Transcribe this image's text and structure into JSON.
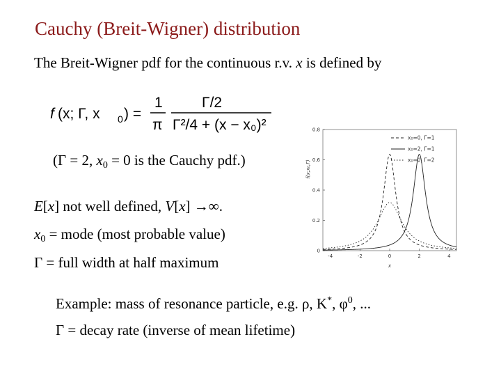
{
  "title": "Cauchy (Breit-Wigner) distribution",
  "intro": {
    "text": "The Breit-Wigner pdf for the continuous r.v. ",
    "var": "x",
    "text2": " is defined by"
  },
  "formula": {
    "lhs_f": "f",
    "lhs_args": "(x; Γ, x",
    "lhs_sub": "0",
    "lhs_close": ") =",
    "coef_num": "1",
    "coef_den": "π",
    "frac_num": "Γ/2",
    "frac_den": "Γ²/4 + (x − x₀)²"
  },
  "lines": {
    "cauchy_note": {
      "a": "(Γ = 2, ",
      "b": "x",
      "c": "0",
      "d": " = 0 is the Cauchy pdf.)"
    },
    "moments": {
      "a": "E",
      "b": "[",
      "c": "x",
      "d": "] not well defined,  ",
      "e": "V",
      "f": "[",
      "g": "x",
      "h": "] →∞."
    },
    "mode": {
      "a": "x",
      "b": "0",
      "c": " = mode (most probable value)"
    },
    "width": {
      "a": "Γ = full width at half maximum"
    },
    "example": {
      "a": "Example:  mass of resonance particle, e.g. ρ, K",
      "b": "*",
      "c": ", φ",
      "d": "0",
      "e": ", ..."
    },
    "decay": {
      "a": "Γ = decay rate (inverse of mean lifetime)"
    }
  },
  "chart_data": {
    "type": "line",
    "ylabel": "f(x;x₀,Γ)",
    "xlabel": "x",
    "xlim": [
      -4.5,
      4.5
    ],
    "ylim": [
      0,
      0.8
    ],
    "x_ticks": [
      "-4",
      "-2",
      "0",
      "2",
      "4"
    ],
    "y_ticks": [
      "0",
      "0.2",
      "0.4",
      "0.6",
      "0.8"
    ],
    "series": [
      {
        "name": "x₀=0, Γ=1",
        "x0": 0,
        "gamma": 1,
        "dash": "4 3"
      },
      {
        "name": "x₀=2, Γ=1",
        "x0": 2,
        "gamma": 1,
        "dash": ""
      },
      {
        "name": "x₀=0, Γ=2",
        "x0": 0,
        "gamma": 2,
        "dash": "1.5 2.5"
      }
    ],
    "legend": "top-right"
  }
}
